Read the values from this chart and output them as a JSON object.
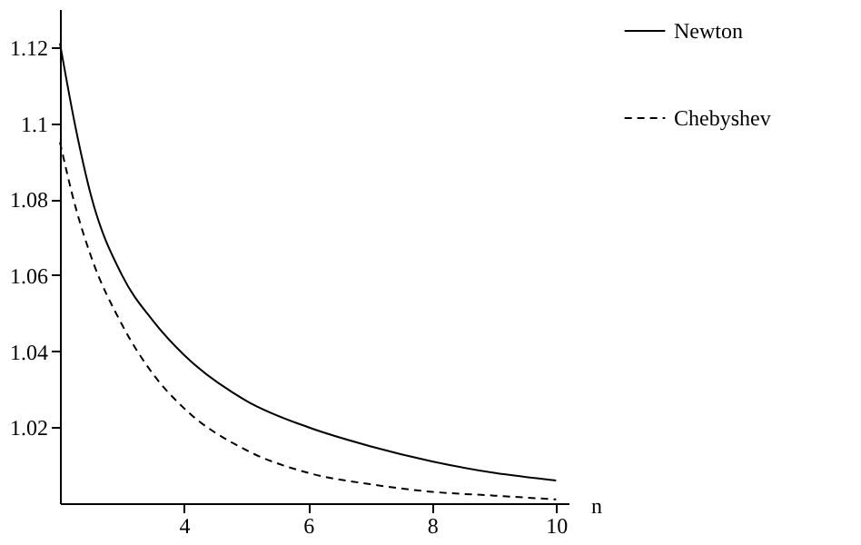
{
  "chart_data": {
    "type": "line",
    "xlabel": "n",
    "xlim": [
      2,
      10.2
    ],
    "xticks": [
      4,
      6,
      8,
      10
    ],
    "ylim": [
      1.0,
      1.13
    ],
    "yticks": [
      1.02,
      1.04,
      1.06,
      1.08,
      1.1,
      1.12
    ],
    "grid": false,
    "legend": "right",
    "marker": "none",
    "series": [
      {
        "name": "Newton",
        "color": "#000000",
        "line_style": "solid",
        "x": [
          2,
          2.25,
          2.5,
          3,
          3.5,
          4,
          5,
          6,
          7,
          8,
          9,
          10
        ],
        "values": [
          1.121,
          1.099,
          1.081,
          1.06,
          1.048,
          1.039,
          1.027,
          1.02,
          1.015,
          1.011,
          1.008,
          1.006
        ]
      },
      {
        "name": "Chebyshev",
        "color": "#000000",
        "line_style": "dashed",
        "x": [
          2,
          2.25,
          2.5,
          3,
          3.5,
          4,
          5,
          6,
          7,
          8,
          9,
          10
        ],
        "values": [
          1.095,
          1.078,
          1.065,
          1.047,
          1.034,
          1.025,
          1.014,
          1.008,
          1.005,
          1.003,
          1.002,
          1.001
        ]
      }
    ]
  }
}
